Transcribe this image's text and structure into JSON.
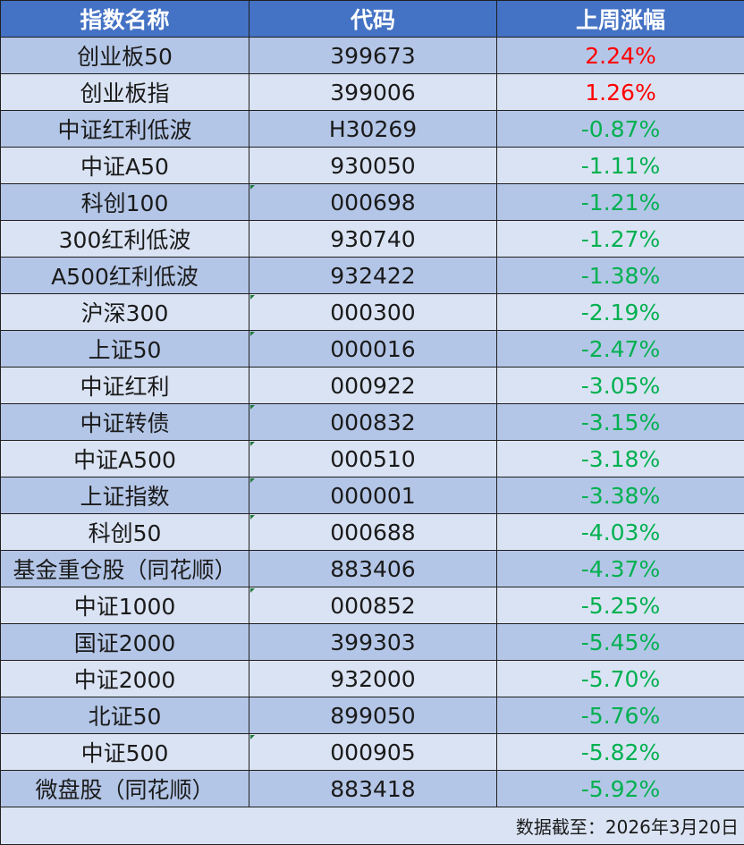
{
  "header": {
    "name": "指数名称",
    "code": "代码",
    "change": "上周涨幅"
  },
  "rows": [
    {
      "name": "创业板50",
      "code": "399673",
      "change": "2.24%"
    },
    {
      "name": "创业板指",
      "code": "399006",
      "change": "1.26%"
    },
    {
      "name": "中证红利低波",
      "code": "H30269",
      "change": "-0.87%"
    },
    {
      "name": "中证A50",
      "code": "930050",
      "change": "-1.11%"
    },
    {
      "name": "科创100",
      "code": "000698",
      "change": "-1.21%"
    },
    {
      "name": "300红利低波",
      "code": "930740",
      "change": "-1.27%"
    },
    {
      "name": "A500红利低波",
      "code": "932422",
      "change": "-1.38%"
    },
    {
      "name": "沪深300",
      "code": "000300",
      "change": "-2.19%"
    },
    {
      "name": "上证50",
      "code": "000016",
      "change": "-2.47%"
    },
    {
      "name": "中证红利",
      "code": "000922",
      "change": "-3.05%"
    },
    {
      "name": "中证转债",
      "code": "000832",
      "change": "-3.15%"
    },
    {
      "name": "中证A500",
      "code": "000510",
      "change": "-3.18%"
    },
    {
      "name": "上证指数",
      "code": "000001",
      "change": "-3.38%"
    },
    {
      "name": "科创50",
      "code": "000688",
      "change": "-4.03%"
    },
    {
      "name": "基金重仓股（同花顺）",
      "code": "883406",
      "change": "-4.37%"
    },
    {
      "name": "中证1000",
      "code": "000852",
      "change": "-5.25%"
    },
    {
      "name": "国证2000",
      "code": "399303",
      "change": "-5.45%"
    },
    {
      "name": "中证2000",
      "code": "932000",
      "change": "-5.70%"
    },
    {
      "name": "北证50",
      "code": "899050",
      "change": "-5.76%"
    },
    {
      "name": "中证500",
      "code": "000905",
      "change": "-5.82%"
    },
    {
      "name": "微盘股（同花顺）",
      "code": "883418",
      "change": "-5.92%"
    }
  ],
  "footer": {
    "note": "数据截至：2026年3月20日"
  },
  "colors": {
    "header_bg": "#4472c4",
    "row_dark": "#b4c6e7",
    "row_light": "#dae3f3",
    "up": "#ff0000",
    "down": "#00b050"
  }
}
